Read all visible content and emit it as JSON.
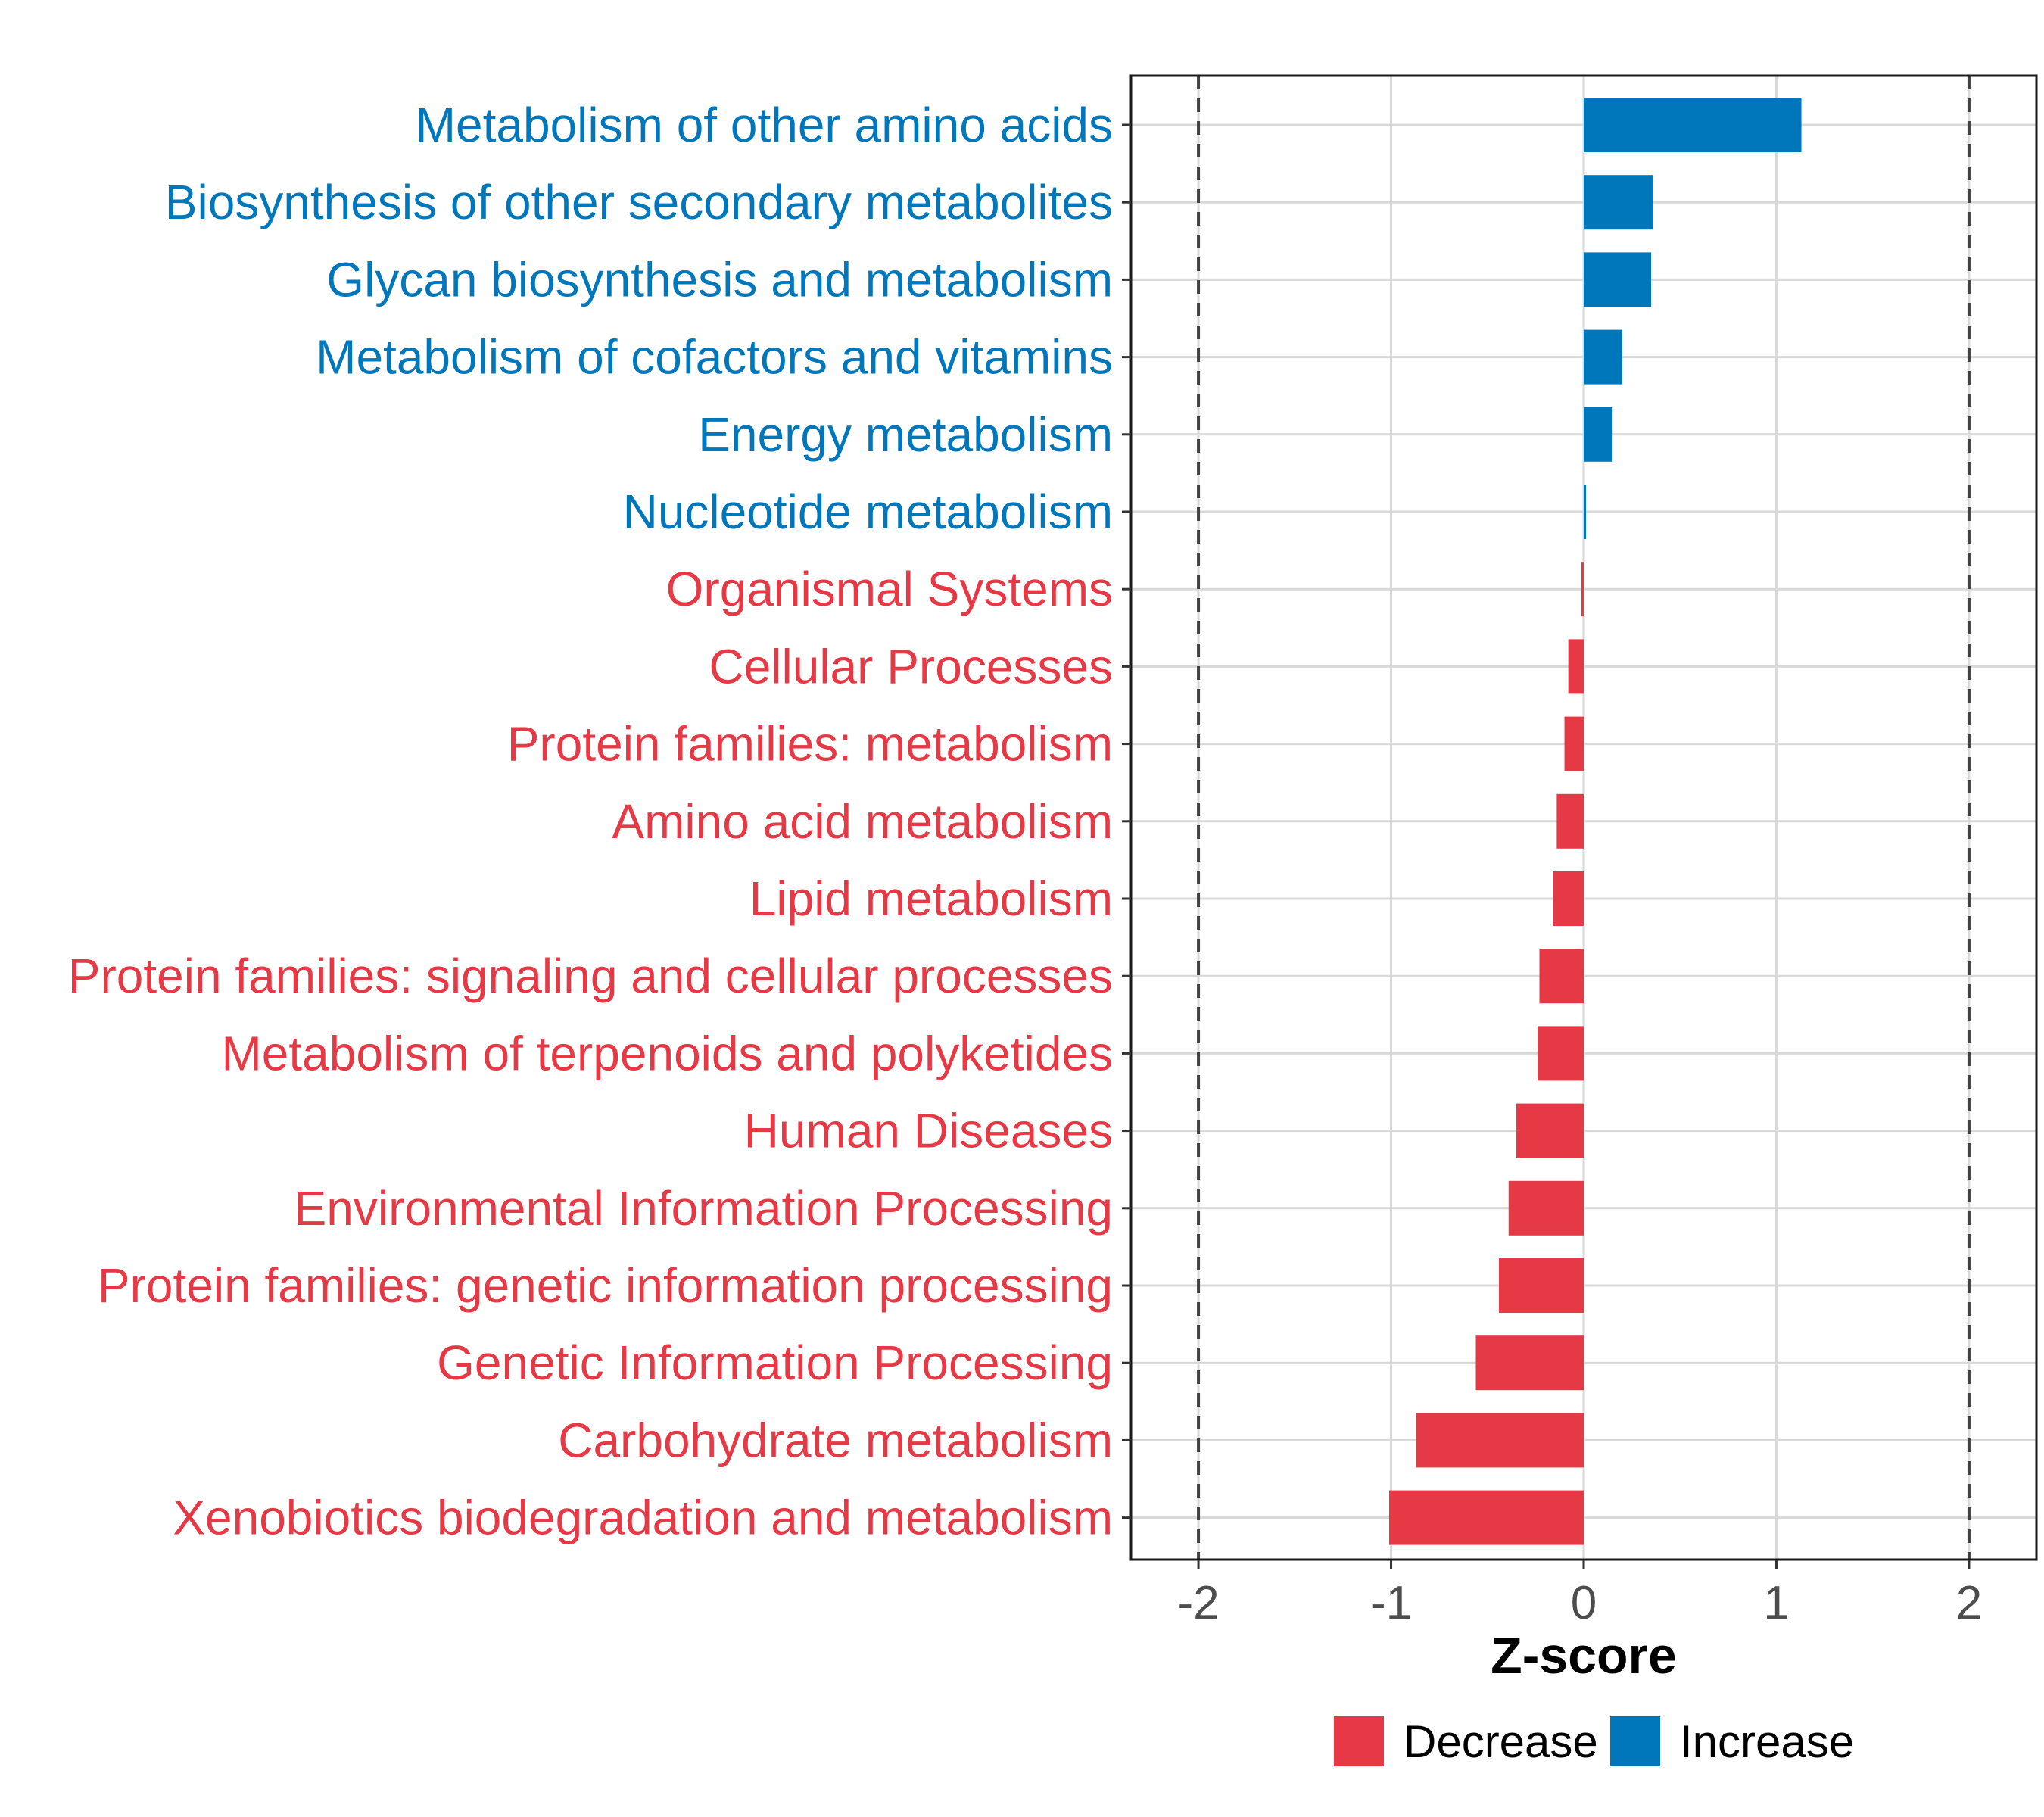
{
  "chart_data": {
    "type": "bar",
    "orientation": "horizontal",
    "title": "",
    "xlabel": "Z-score",
    "ylabel": "",
    "xlim": [
      -2.35,
      2.35
    ],
    "xticks": [
      -2,
      -1,
      0,
      1,
      2
    ],
    "xtick_labels": [
      "-2",
      "-1",
      "0",
      "1",
      "2"
    ],
    "reference_lines": [
      -2,
      2
    ],
    "grid": true,
    "categories": [
      "Metabolism of other amino acids",
      "Biosynthesis of other secondary metabolites",
      "Glycan biosynthesis and metabolism",
      "Metabolism of cofactors and vitamins",
      "Energy metabolism",
      "Nucleotide metabolism",
      "Organismal Systems",
      "Cellular Processes",
      "Protein families: metabolism",
      "Amino acid metabolism",
      "Lipid metabolism",
      "Protein families: signaling and cellular processes",
      "Metabolism of terpenoids and polyketides",
      "Human Diseases",
      "Environmental Information Processing",
      "Protein families: genetic information processing",
      "Genetic Information Processing",
      "Carbohydrate metabolism",
      "Xenobiotics biodegradation and metabolism"
    ],
    "values": [
      1.13,
      0.36,
      0.35,
      0.2,
      0.15,
      0.01,
      -0.01,
      -0.08,
      -0.1,
      -0.14,
      -0.16,
      -0.23,
      -0.24,
      -0.35,
      -0.39,
      -0.44,
      -0.56,
      -0.87,
      -1.01
    ],
    "groups": [
      "Increase",
      "Increase",
      "Increase",
      "Increase",
      "Increase",
      "Increase",
      "Decrease",
      "Decrease",
      "Decrease",
      "Decrease",
      "Decrease",
      "Decrease",
      "Decrease",
      "Decrease",
      "Decrease",
      "Decrease",
      "Decrease",
      "Decrease",
      "Decrease"
    ],
    "legend": {
      "position": "bottom",
      "entries": [
        {
          "label": "Decrease",
          "color": "#e63946"
        },
        {
          "label": "Increase",
          "color": "#0077bb"
        }
      ]
    }
  }
}
